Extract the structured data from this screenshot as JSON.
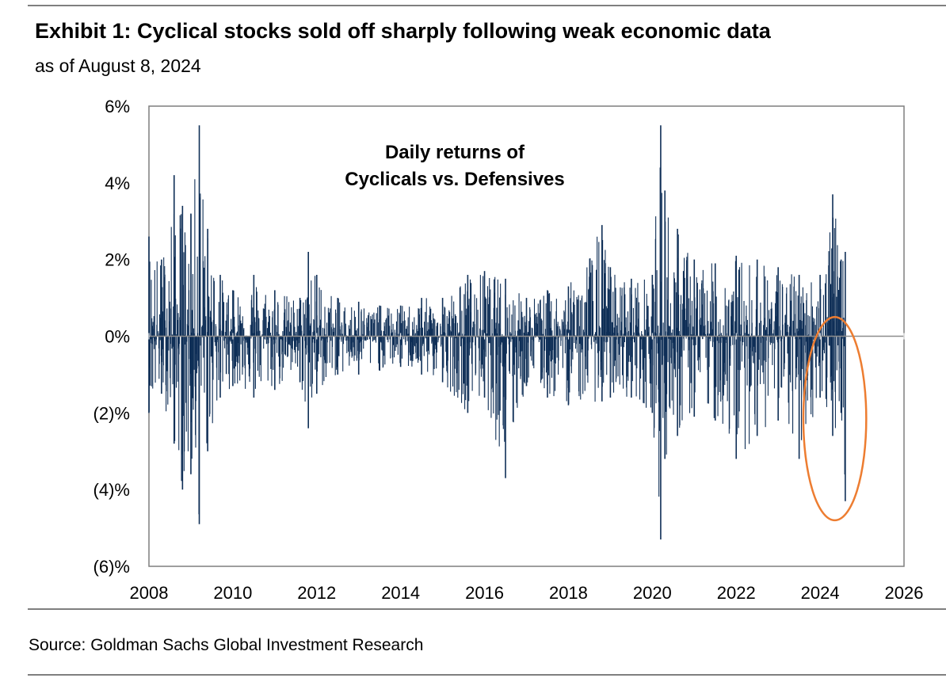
{
  "header": {
    "title": "Exhibit 1: Cyclical stocks sold off sharply following weak economic data",
    "subtitle": "as of August 8, 2024"
  },
  "footer": {
    "source": "Source: Goldman Sachs Global Investment Research"
  },
  "colors": {
    "series": "#0f2f57",
    "zero_line": "#8c8c8c",
    "highlight": "#ed7d31",
    "rule": "#7f7f7f"
  },
  "chart_data": {
    "type": "bar",
    "title": "",
    "annotation": [
      "Daily returns of",
      "Cyclicals vs. Defensives"
    ],
    "xlabel": "",
    "ylabel": "",
    "xlim": [
      2008,
      2026
    ],
    "ylim": [
      -6,
      6
    ],
    "x_ticks": [
      2008,
      2010,
      2012,
      2014,
      2016,
      2018,
      2020,
      2022,
      2024,
      2026
    ],
    "x_tick_labels": [
      "2008",
      "2010",
      "2012",
      "2014",
      "2016",
      "2018",
      "2020",
      "2022",
      "2024",
      "2026"
    ],
    "y_ticks": [
      6,
      4,
      2,
      0,
      -2,
      -4,
      -6
    ],
    "y_tick_labels": [
      "6%",
      "4%",
      "2%",
      "0%",
      "(2)%",
      "(4)%",
      "(6)%"
    ],
    "grid": false,
    "legend": "none",
    "highlight": {
      "shape": "ellipse",
      "x_range": [
        2023.6,
        2025.1
      ],
      "y_range": [
        -4.8,
        0.5
      ]
    },
    "series": [
      {
        "values_note": "approximate envelope of daily returns (%), read from the chart",
        "x": [
          2008.0,
          2008.3,
          2008.6,
          2008.8,
          2009.0,
          2009.2,
          2009.4,
          2009.7,
          2010.0,
          2010.5,
          2011.0,
          2011.6,
          2011.8,
          2012.0,
          2012.5,
          2013.0,
          2013.5,
          2014.0,
          2014.5,
          2015.0,
          2015.6,
          2016.0,
          2016.5,
          2017.0,
          2017.5,
          2018.0,
          2018.8,
          2019.0,
          2019.5,
          2020.0,
          2020.2,
          2020.3,
          2020.6,
          2021.0,
          2021.5,
          2022.0,
          2022.5,
          2023.0,
          2023.5,
          2024.0,
          2024.3,
          2024.5,
          2024.6
        ],
        "high": [
          2.6,
          2.0,
          4.2,
          3.4,
          3.2,
          5.5,
          2.8,
          1.6,
          1.2,
          1.6,
          1.2,
          1.0,
          2.2,
          1.6,
          1.0,
          0.9,
          0.8,
          0.8,
          1.0,
          1.0,
          1.6,
          1.7,
          1.5,
          1.0,
          1.2,
          1.3,
          2.9,
          1.8,
          1.5,
          1.6,
          5.5,
          3.8,
          2.8,
          2.0,
          1.9,
          2.1,
          2.0,
          1.8,
          1.6,
          1.6,
          3.7,
          2.0,
          2.2
        ],
        "low": [
          -2.0,
          -1.5,
          -2.8,
          -4.0,
          -3.6,
          -4.9,
          -3.0,
          -1.6,
          -1.3,
          -1.6,
          -1.4,
          -1.2,
          -2.4,
          -1.5,
          -1.0,
          -1.0,
          -0.9,
          -0.8,
          -1.0,
          -1.2,
          -2.0,
          -1.6,
          -3.7,
          -1.3,
          -1.6,
          -1.8,
          -1.7,
          -1.6,
          -1.6,
          -2.0,
          -5.3,
          -3.2,
          -2.6,
          -2.1,
          -2.2,
          -3.2,
          -2.6,
          -2.2,
          -3.2,
          -1.6,
          -2.6,
          -2.0,
          -4.3
        ]
      }
    ]
  }
}
